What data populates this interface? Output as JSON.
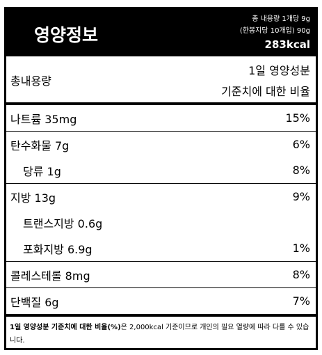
{
  "header": {
    "title": "영양정보",
    "serving_lines": [
      "총 내용량 1개당 9g",
      "(한봉지당 10개입) 90g"
    ],
    "calories": "283kcal"
  },
  "table": {
    "column_header": {
      "left": "총내용량",
      "right_lines": [
        "1일 영양성분",
        "기준치에 대한 비율"
      ]
    },
    "groups": [
      {
        "rows": [
          {
            "label": "나트륨 35mg",
            "percent": "15%"
          }
        ]
      },
      {
        "rows": [
          {
            "label": "탄수화물 7g",
            "percent": "6%"
          },
          {
            "label": "당류 1g",
            "percent": "8%",
            "sub": true
          }
        ]
      },
      {
        "rows": [
          {
            "label": "지방 13g",
            "percent": "9%"
          },
          {
            "label": "트랜스지방 0.6g",
            "sub": true
          },
          {
            "label": "포화지방 6.9g",
            "percent": "1%",
            "sub": true
          }
        ]
      },
      {
        "rows": [
          {
            "label": "콜레스테롤 8mg",
            "percent": "8%"
          }
        ]
      },
      {
        "rows": [
          {
            "label": "단백질 6g",
            "percent": "7%"
          }
        ]
      }
    ]
  },
  "footnote": {
    "bold": "1일 영양성분 기준치에 대한 비율(%)",
    "text": "은 2,000kcal 기준이므로 개인의 필요 열량에 따라 다를 수 있습니다."
  }
}
